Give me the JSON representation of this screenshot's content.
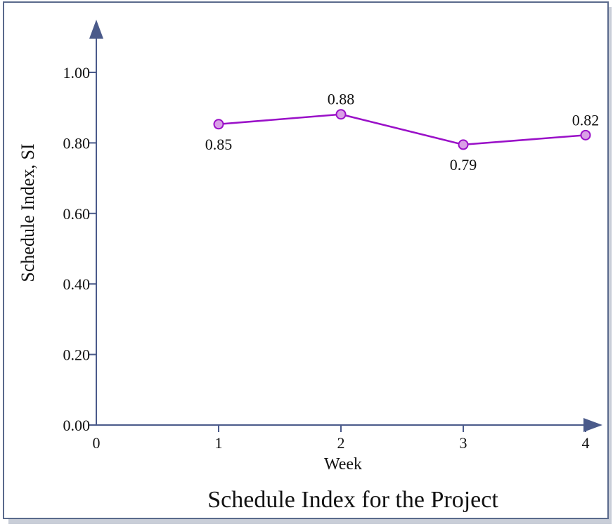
{
  "chart_data": {
    "type": "line",
    "title": "Schedule Index for the Project",
    "xlabel": "Week",
    "ylabel": "Schedule Index, SI",
    "x_origin_label": "0",
    "x": [
      1,
      2,
      3,
      4
    ],
    "x_tick_labels": [
      "1",
      "2",
      "3",
      "4"
    ],
    "xlim": [
      0,
      4.5
    ],
    "ylim": [
      0,
      1.0
    ],
    "y_ticks": [
      "0.00",
      "0.20",
      "0.40",
      "0.60",
      "0.80",
      "1.00"
    ],
    "series": [
      {
        "values": [
          0.853,
          0.881,
          0.795,
          0.822
        ],
        "data_labels": [
          "0.85",
          "0.88",
          "0.79",
          "0.82"
        ],
        "label_positions": [
          "below",
          "above",
          "below",
          "above"
        ]
      }
    ],
    "grid": false,
    "colors": {
      "line": "#9a10c8",
      "marker_fill": "#d9a0e6",
      "axis": "#4a5a8a",
      "frame_border": "#5a6a8c",
      "frame_shadow": "#c9ced8"
    }
  }
}
